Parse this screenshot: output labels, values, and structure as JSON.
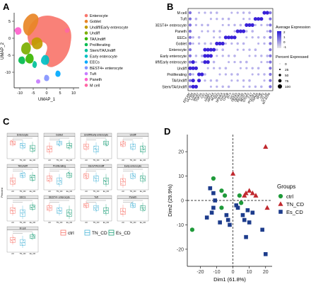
{
  "panels": {
    "a": "A",
    "b": "B",
    "c": "C",
    "d": "D"
  },
  "umap": {
    "xlabel": "UMAP_1",
    "ylabel": "UMAP_2",
    "xticks": [
      "-10",
      "-5",
      "0",
      "5",
      "10"
    ],
    "yticks": [
      "5",
      "0",
      "-5",
      "-10"
    ],
    "legend": [
      {
        "label": "Enterocyte",
        "color": "#f8766d"
      },
      {
        "label": "Goblet",
        "color": "#e88526"
      },
      {
        "label": "Undiff/Early enterocyte",
        "color": "#c09b00"
      },
      {
        "label": "Undiff",
        "color": "#7cae00"
      },
      {
        "label": "TA/Undiff",
        "color": "#39b600"
      },
      {
        "label": "Proliferating",
        "color": "#00bb4e"
      },
      {
        "label": "Stem/TA/Undiff",
        "color": "#00c19a"
      },
      {
        "label": "Early enterocyte",
        "color": "#00bfc4"
      },
      {
        "label": "EECs",
        "color": "#00a9ff"
      },
      {
        "label": "BEST4+ enterocyte",
        "color": "#8494ff"
      },
      {
        "label": "Tuft",
        "color": "#c77cff"
      },
      {
        "label": "Paneth",
        "color": "#ff61cc"
      },
      {
        "label": "M cell",
        "color": "#ff67a4"
      }
    ]
  },
  "dotplot": {
    "rows": [
      "M cell",
      "Tuft",
      "BEST4+ enterocyte",
      "Paneth",
      "EECs",
      "Goblet",
      "Enterocyte",
      "Early enterocyte",
      "Undiff/Early enterocyte",
      "Undiff",
      "Proliferating",
      "TA/Undiff",
      "Stem/TA/Undiff"
    ],
    "genes": [
      "EPCAM",
      "OLFM4",
      "LGR5",
      "MKI67",
      "TOP2A",
      "CA1",
      "CA2",
      "FABP1",
      "APOA4",
      "MUC2",
      "TFF3",
      "SPINK4",
      "CHGA",
      "CHGB",
      "PYY",
      "GCG",
      "DEFA5",
      "DEFA6",
      "REG3A",
      "BEST4",
      "OTOP2",
      "CA7",
      "POU2F3",
      "TRPM5",
      "SPIB",
      "GP2",
      "CCL20",
      "MT-ATP6"
    ],
    "legend_title_1": "Average Expression",
    "legend_title_2": "Percent Expressed",
    "expr_ticks": [
      "2",
      "1",
      "0",
      "-1"
    ],
    "pct_ticks": [
      "0",
      "25",
      "50",
      "75",
      "100"
    ]
  },
  "boxplots": {
    "ylabel": "Percent",
    "cells": [
      "Enterocyte",
      "Goblet",
      "Undiff/Early enterocyte",
      "Undiff",
      "TA/Undiff",
      "Proliferating",
      "Stem/TA/Undiff",
      "Early enterocyte",
      "EECs",
      "BEST4+ enterocyte",
      "Tuft",
      "Paneth",
      "M cell"
    ],
    "groups": [
      "ctrl",
      "TN_CD",
      "Es_CD"
    ],
    "colors": {
      "ctrl": "#f8766d",
      "TN_CD": "#4db6d8",
      "Es_CD": "#1b9e77"
    },
    "legend": [
      "ctrl",
      "TN_CD",
      "Es_CD"
    ]
  },
  "chart_data": {
    "type": "scatter",
    "title": "",
    "xlabel": "Dim1 (61.8%)",
    "ylabel": "Dim2 (29.9%)",
    "xlim": [
      -28,
      24
    ],
    "ylim": [
      -27,
      27
    ],
    "xticks": [
      -20,
      -10,
      0,
      10,
      20
    ],
    "yticks": [
      20,
      10,
      0,
      -10,
      -20
    ],
    "legend_title": "Groups",
    "legend_position": "right",
    "series": [
      {
        "name": "ctrl",
        "marker": "circle",
        "color": "#1f9a3a",
        "points": [
          [
            -25,
            -12
          ],
          [
            -12,
            9
          ],
          [
            -7,
            4
          ],
          [
            -5,
            2
          ],
          [
            -7,
            -3
          ],
          [
            4,
            2
          ],
          [
            5,
            -1
          ]
        ]
      },
      {
        "name": "TN_CD",
        "marker": "triangle",
        "color": "#c0282e",
        "points": [
          [
            0,
            11
          ],
          [
            7,
            2
          ],
          [
            8,
            3
          ],
          [
            10,
            4
          ],
          [
            12,
            3
          ],
          [
            14,
            2
          ],
          [
            20,
            22
          ],
          [
            21,
            -3
          ]
        ]
      },
      {
        "name": "Es_CD",
        "marker": "square",
        "color": "#1d3c8c",
        "points": [
          [
            -14,
            5
          ],
          [
            -12,
            3
          ],
          [
            -11,
            0
          ],
          [
            -12,
            -3
          ],
          [
            -13,
            -5
          ],
          [
            -16,
            -7
          ],
          [
            -8,
            -9
          ],
          [
            -4,
            -6
          ],
          [
            -3,
            -8
          ],
          [
            -2,
            -10
          ],
          [
            2,
            -2
          ],
          [
            3,
            -3
          ],
          [
            6,
            -6
          ],
          [
            9,
            -4
          ],
          [
            7,
            -8
          ],
          [
            10,
            -9
          ],
          [
            12,
            -5
          ],
          [
            8,
            -15
          ],
          [
            18,
            -12
          ],
          [
            20,
            -22
          ]
        ]
      }
    ]
  }
}
